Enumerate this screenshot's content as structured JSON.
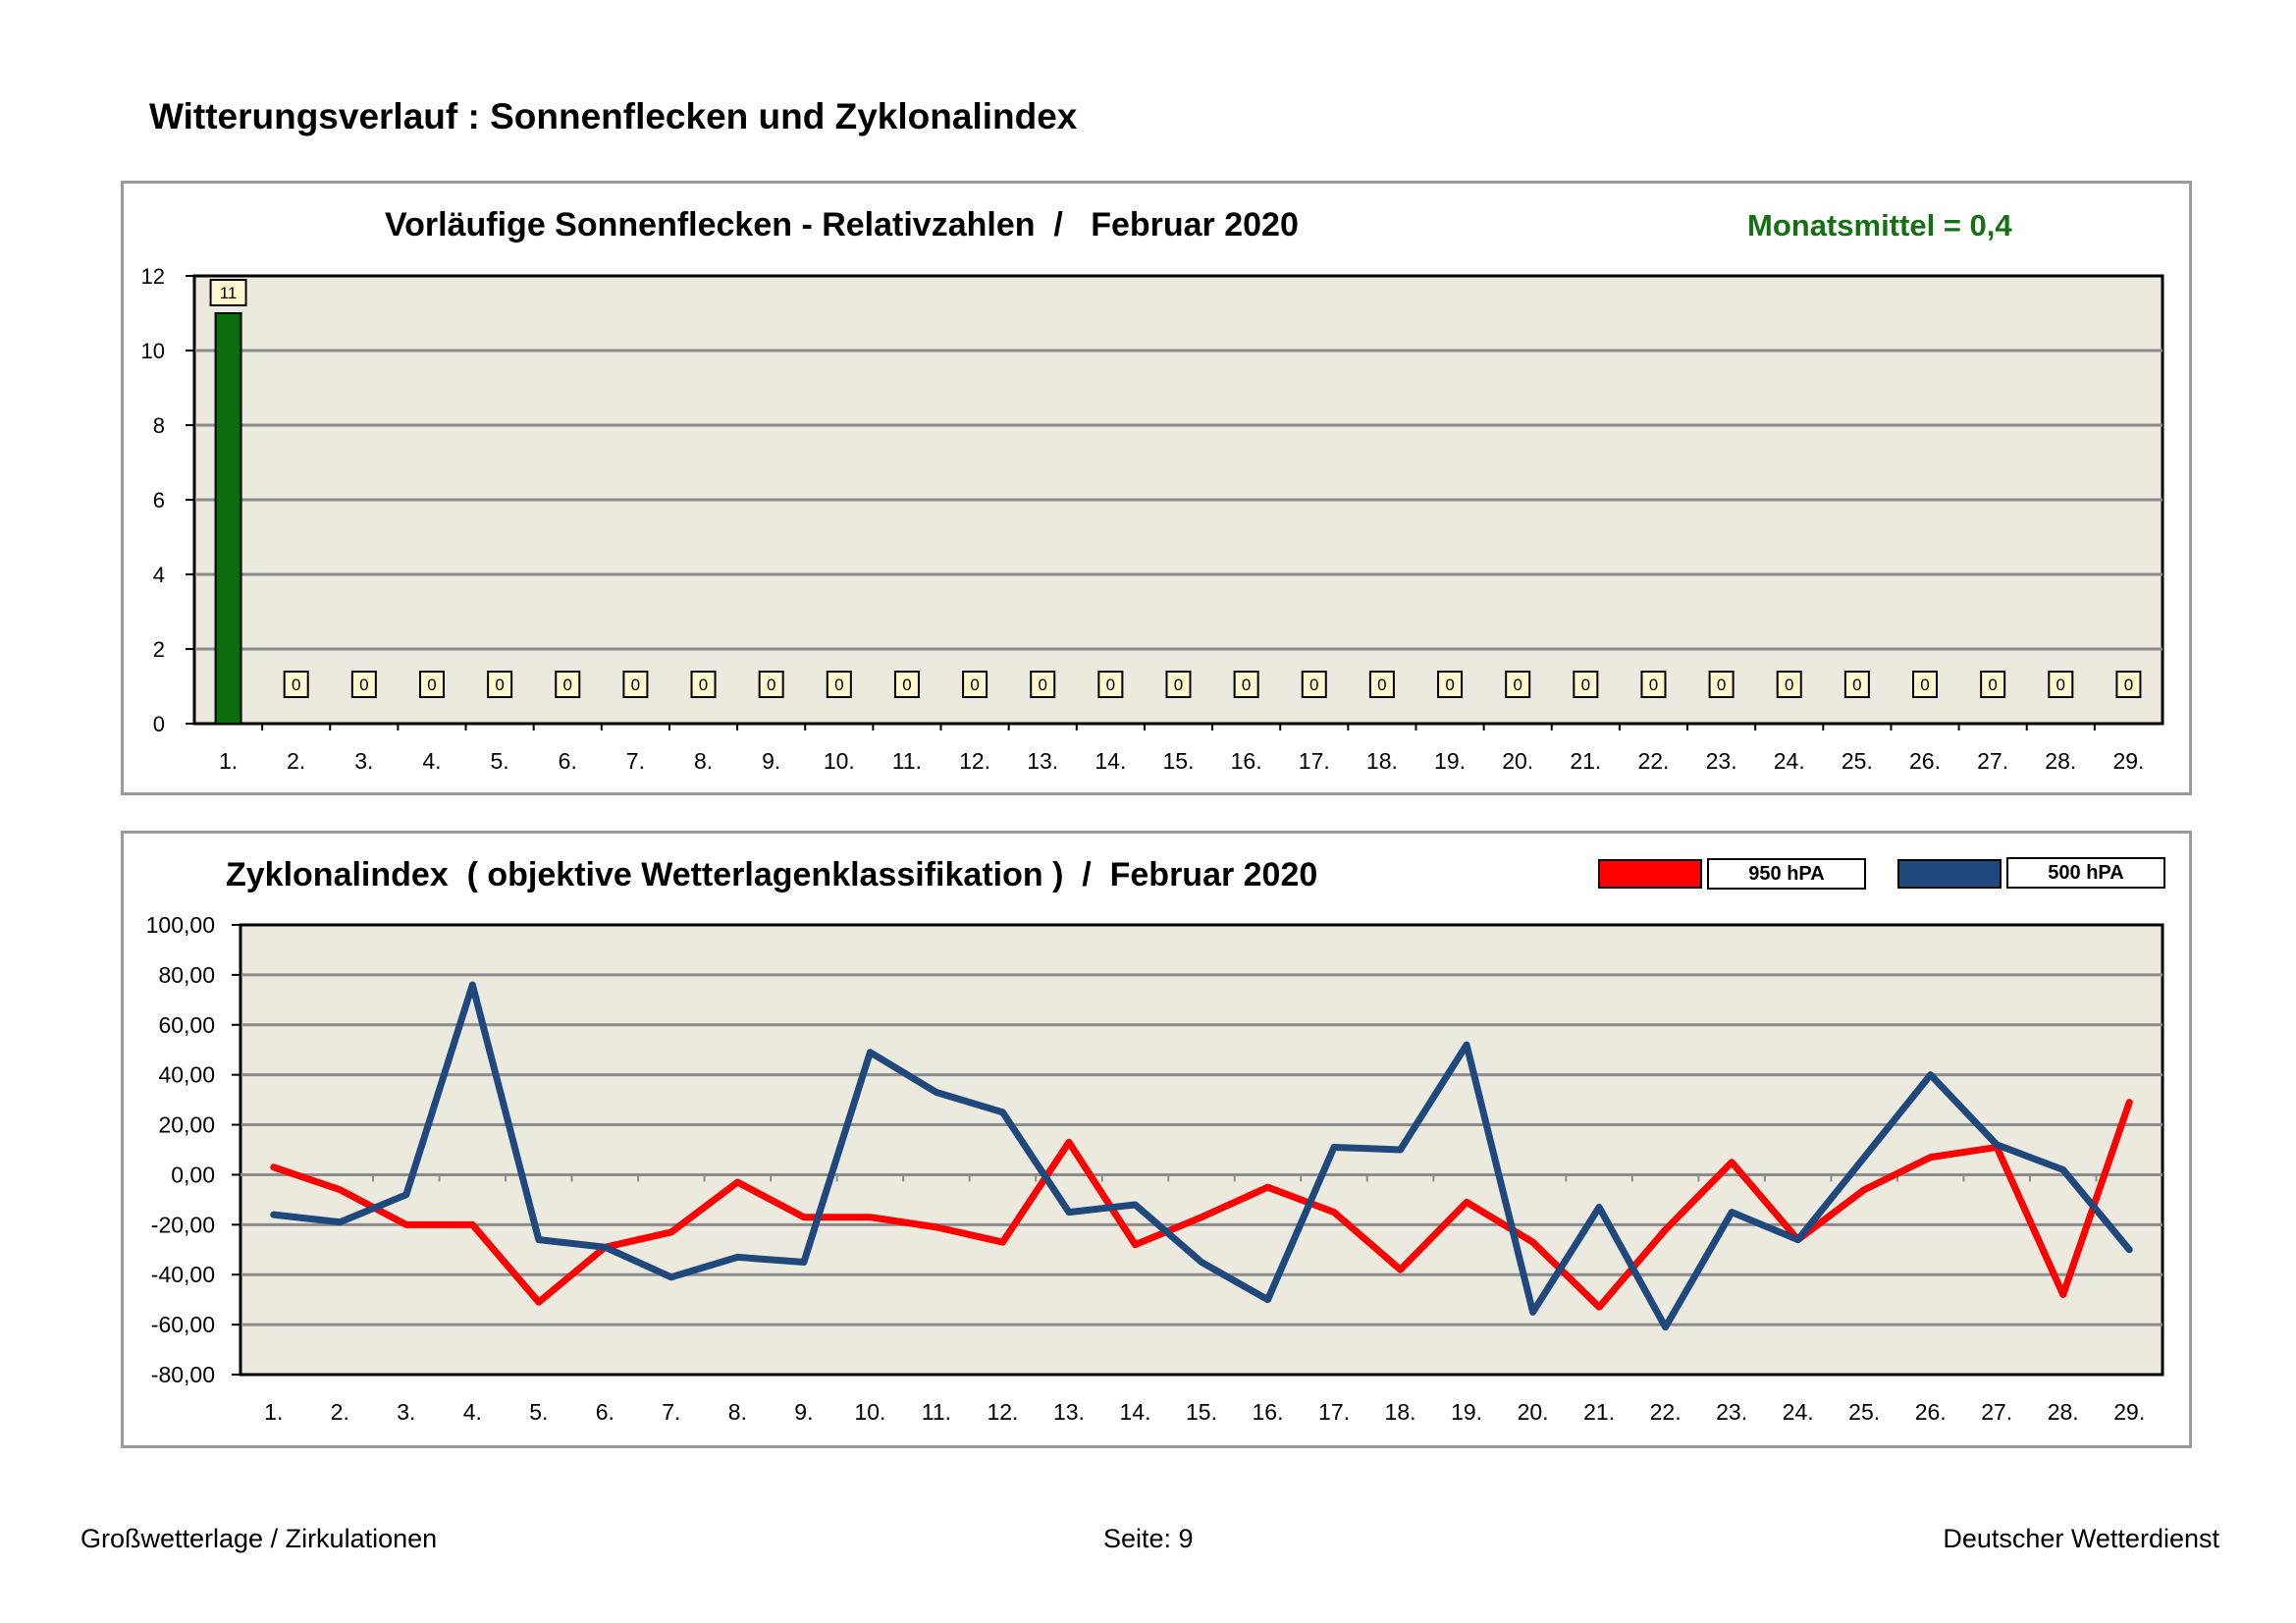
{
  "page_title": "Witterungsverlauf : Sonnenflecken und Zyklonalindex",
  "chart_data": [
    {
      "type": "bar",
      "title": "Vorläufige Sonnenflecken - Relativzahlen  /   Februar 2020",
      "annotation": "Monatsmittel = 0,4",
      "categories": [
        "1.",
        "2.",
        "3.",
        "4.",
        "5.",
        "6.",
        "7.",
        "8.",
        "9.",
        "10.",
        "11.",
        "12.",
        "13.",
        "14.",
        "15.",
        "16.",
        "17.",
        "18.",
        "19.",
        "20.",
        "21.",
        "22.",
        "23.",
        "24.",
        "25.",
        "26.",
        "27.",
        "28.",
        "29."
      ],
      "values": [
        11,
        0,
        0,
        0,
        0,
        0,
        0,
        0,
        0,
        0,
        0,
        0,
        0,
        0,
        0,
        0,
        0,
        0,
        0,
        0,
        0,
        0,
        0,
        0,
        0,
        0,
        0,
        0,
        0
      ],
      "ylim": [
        0,
        12
      ],
      "yticks": [
        "0",
        "2",
        "4",
        "6",
        "8",
        "10",
        "12"
      ],
      "bar_color": "#0b6d0b",
      "plot_background": "#ece9df",
      "grid": true
    },
    {
      "type": "line",
      "title": "Zyklonalindex  ( objektive Wetterlagenklassifikation )  /  Februar 2020",
      "categories": [
        "1.",
        "2.",
        "3.",
        "4.",
        "5.",
        "6.",
        "7.",
        "8.",
        "9.",
        "10.",
        "11.",
        "12.",
        "13.",
        "14.",
        "15.",
        "16.",
        "17.",
        "18.",
        "19.",
        "20.",
        "21.",
        "22.",
        "23.",
        "24.",
        "25.",
        "26.",
        "27.",
        "28.",
        "29."
      ],
      "ylim": [
        -80,
        100
      ],
      "yticks": [
        "-80,00",
        "-60,00",
        "-40,00",
        "-20,00",
        "0,00",
        "20,00",
        "40,00",
        "60,00",
        "80,00",
        "100,00"
      ],
      "plot_background": "#ece9df",
      "grid": true,
      "legend_position": "top-right",
      "series": [
        {
          "name": "950 hPA",
          "color": "#ff0000",
          "values": [
            3,
            -6,
            -20,
            -20,
            -51,
            -29,
            -23,
            -3,
            -17,
            -17,
            -21,
            -27,
            13,
            -28,
            -17,
            -5,
            -15,
            -38,
            -11,
            -27,
            -53,
            -22,
            5,
            -26,
            -6,
            7,
            11,
            -48,
            29
          ]
        },
        {
          "name": "500 hPA",
          "color": "#1f487c",
          "values": [
            -16,
            -19,
            -8,
            76,
            -26,
            -29,
            -41,
            -33,
            -35,
            49,
            33,
            25,
            -15,
            -12,
            -35,
            -50,
            11,
            10,
            52,
            -55,
            -13,
            -61,
            -15,
            -26,
            7,
            40,
            12,
            2,
            -30
          ]
        }
      ]
    }
  ],
  "footer": {
    "left": "Großwetterlage / Zirkulationen",
    "center": "Seite: 9",
    "right": "Deutscher Wetterdienst"
  }
}
